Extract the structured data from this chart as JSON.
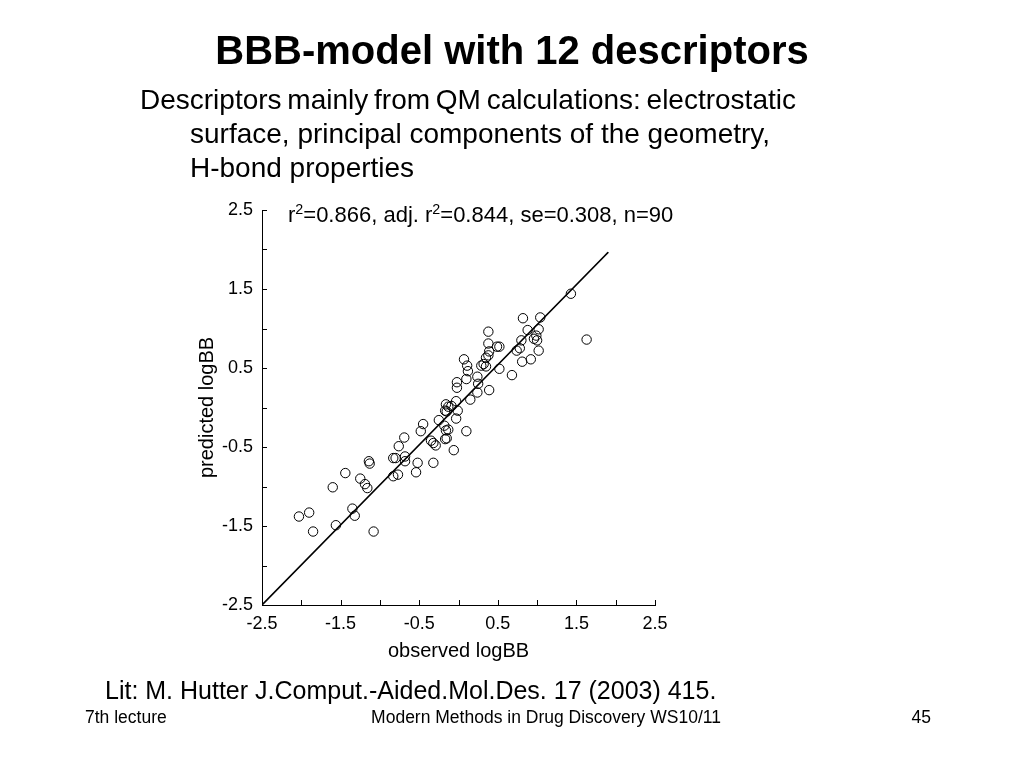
{
  "chart_data": {
    "type": "scatter",
    "title": "BBB-model with 12 descriptors",
    "subtitle": "Descriptors mainly from QM calculations: electrostatic surface, principal components of the geometry, H-bond properties",
    "xlabel": "observed logBB",
    "ylabel": "predicted logBB",
    "annotations": [
      "r$^{2}$=0.866, adj. r$^{2}$=0.844, se=0.308, n=90",
      "Lit: M. Hutter J.Comput.-Aided.Mol.Des. 17 (2003) 415.",
      "7th lecture",
      "Modern Methods in Drug Discovery WS10/11",
      "45"
    ],
    "xlim": [
      -2.5,
      2.5
    ],
    "ylim": [
      -2.5,
      2.5
    ],
    "xticks": [
      -2.5,
      {
        "value": -2,
        "label": null
      },
      -1.5,
      {
        "value": -1,
        "label": null
      },
      -0.5,
      {
        "value": 0,
        "label": null
      },
      0.5,
      {
        "value": 1,
        "label": null
      },
      1.5,
      {
        "value": 2,
        "label": null
      },
      2.5
    ],
    "yticks": [
      -2.5,
      {
        "value": -2,
        "label": null
      },
      -1.5,
      {
        "value": -1,
        "label": null
      },
      -0.5,
      {
        "value": 0,
        "label": null
      },
      0.5,
      {
        "value": 1,
        "label": null
      },
      1.5,
      {
        "value": 2,
        "label": null
      },
      2.5
    ],
    "series": [
      {
        "type": "scatter",
        "color": "#000000",
        "marker": "circle",
        "x": [
          1.43,
          0.82,
          1.04,
          0.38,
          0.88,
          1.02,
          0.99,
          0.96,
          1,
          1.63,
          0.8,
          0.38,
          0.49,
          0.52,
          0.39,
          0.38,
          0.35,
          0.74,
          0.78,
          1.02,
          0.07,
          0.81,
          0.92,
          0.29,
          0.32,
          0.35,
          0.11,
          0.12,
          0.52,
          0.68,
          0.24,
          -0.02,
          -0.02,
          0.1,
          0.25,
          0.24,
          0.39,
          0.15,
          -0.03,
          -0.16,
          -0.13,
          -0.17,
          -0.15,
          -0.01,
          -0.03,
          -0.25,
          -0.18,
          -0.13,
          -0.16,
          0.1,
          -0.45,
          -0.48,
          -0.69,
          -0.15,
          -0.17,
          -0.35,
          -0.32,
          -0.29,
          -0.76,
          -0.06,
          -0.83,
          -0.8,
          -0.68,
          -0.68,
          -0.52,
          -0.32,
          -0.54,
          -0.83,
          -0.77,
          -1.14,
          -1.13,
          -1.44,
          -1.25,
          -1.19,
          -1.16,
          -1.6,
          -1.35,
          -1.32,
          -1.9,
          -2.03,
          -1.56,
          -1.85,
          -1.08,
          -0.09
        ],
        "values": [
          1.44,
          1.13,
          1.14,
          0.96,
          0.98,
          0.99,
          0.91,
          0.87,
          0.85,
          0.86,
          0.85,
          0.81,
          0.77,
          0.77,
          0.71,
          0.66,
          0.63,
          0.72,
          0.75,
          0.72,
          0.61,
          0.58,
          0.61,
          0.53,
          0.55,
          0.52,
          0.53,
          0.46,
          0.49,
          0.41,
          0.39,
          0.32,
          0.25,
          0.36,
          0.3,
          0.19,
          0.22,
          0.1,
          0.08,
          0.04,
          0.01,
          -0.04,
          -0.05,
          -0.04,
          -0.14,
          -0.16,
          -0.23,
          -0.28,
          -0.29,
          -0.3,
          -0.21,
          -0.3,
          -0.38,
          -0.39,
          -0.4,
          -0.42,
          -0.45,
          -0.48,
          -0.49,
          -0.54,
          -0.64,
          -0.64,
          -0.62,
          -0.68,
          -0.7,
          -0.7,
          -0.82,
          -0.87,
          -0.85,
          -0.68,
          -0.71,
          -0.83,
          -0.9,
          -0.97,
          -1.02,
          -1.01,
          -1.28,
          -1.37,
          -1.33,
          -1.38,
          -1.49,
          -1.57,
          -1.57,
          0.02
        ]
      },
      {
        "type": "line",
        "color": "#000000",
        "line_style": "solid",
        "x": [
          -2.5,
          1.9
        ],
        "values": [
          -2.5,
          1.96
        ]
      }
    ]
  }
}
